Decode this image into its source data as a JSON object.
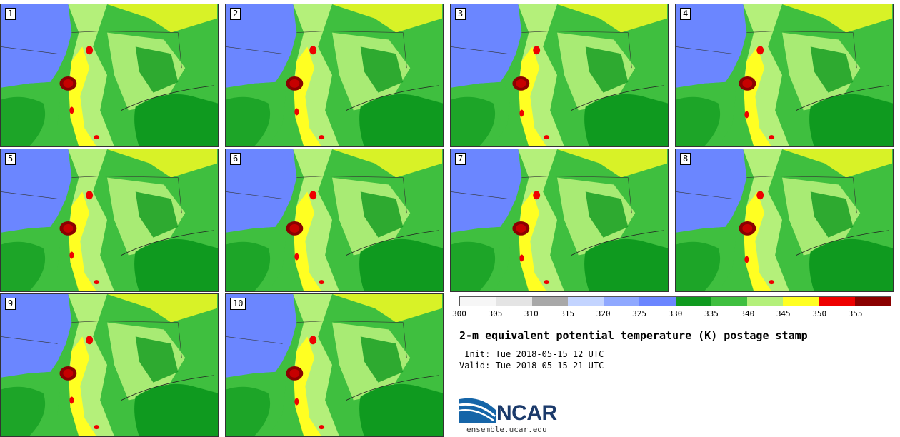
{
  "panels": [
    {
      "label": "1"
    },
    {
      "label": "2"
    },
    {
      "label": "3"
    },
    {
      "label": "4"
    },
    {
      "label": "5"
    },
    {
      "label": "6"
    },
    {
      "label": "7"
    },
    {
      "label": "8"
    },
    {
      "label": "9"
    },
    {
      "label": "10"
    }
  ],
  "colorbar": {
    "ticks": [
      "300",
      "305",
      "310",
      "315",
      "320",
      "325",
      "330",
      "335",
      "340",
      "345",
      "350",
      "355"
    ],
    "colors": [
      "#f6f6f6",
      "#e4e4e4",
      "#a8a8a8",
      "#c3d4ff",
      "#8fa8ff",
      "#6b86ff",
      "#0f9a1f",
      "#3fbf3f",
      "#b4f07a",
      "#ffff22",
      "#ee0000",
      "#8a0000"
    ]
  },
  "title": "2-m equivalent potential temperature (K) postage stamp",
  "init": " Init: Tue 2018-05-15 12 UTC",
  "valid": "Valid: Tue 2018-05-15 21 UTC",
  "logo": {
    "text": "NCAR",
    "url": "ensemble.ucar.edu"
  }
}
